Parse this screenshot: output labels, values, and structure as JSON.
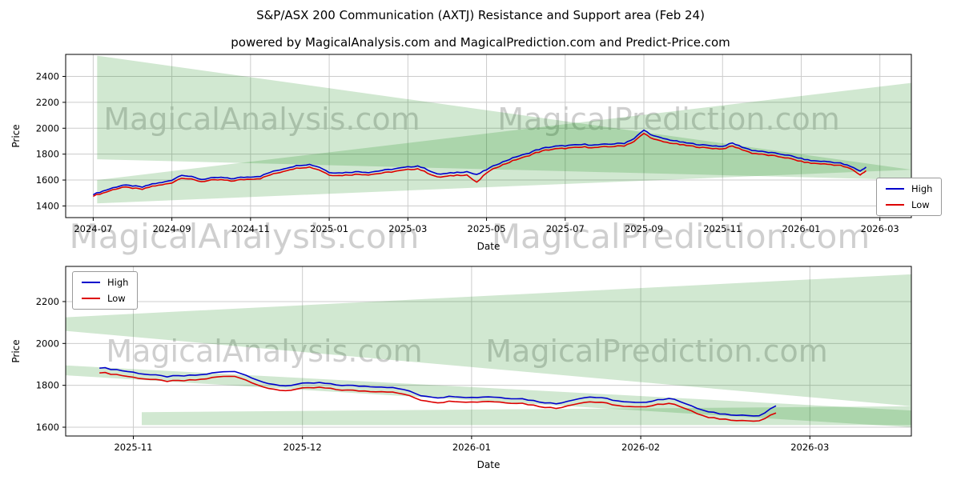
{
  "page": {
    "title": "S&P/ASX 200 Communication (AXTJ) Resistance and Support area (Feb 24)",
    "subtitle": "powered by MagicalAnalysis.com and MagicalPrediction.com and Predict-Price.com"
  },
  "watermarks": {
    "analysis": "MagicalAnalysis.com",
    "prediction": "MagicalPrediction.com"
  },
  "legend": {
    "high": "High",
    "low": "Low"
  },
  "colors": {
    "high": "#0000cc",
    "low": "#dd0000",
    "band": "#008000",
    "grid": "#cccccc",
    "spine": "#000000",
    "watermark": "rgba(128,128,128,0.38)"
  },
  "chart_data": [
    {
      "type": "line",
      "xlabel": "Date",
      "ylabel": "Price",
      "xlim": [
        -0.7,
        20.8
      ],
      "ylim": [
        1310,
        2570
      ],
      "jitter_amp": 4,
      "x_ticks": [
        {
          "v": 0,
          "label": "2024-07"
        },
        {
          "v": 2,
          "label": "2024-09"
        },
        {
          "v": 4,
          "label": "2024-11"
        },
        {
          "v": 6,
          "label": "2025-01"
        },
        {
          "v": 8,
          "label": "2025-03"
        },
        {
          "v": 10,
          "label": "2025-05"
        },
        {
          "v": 12,
          "label": "2025-07"
        },
        {
          "v": 14,
          "label": "2025-09"
        },
        {
          "v": 16,
          "label": "2025-11"
        },
        {
          "v": 18,
          "label": "2026-01"
        },
        {
          "v": 20,
          "label": "2026-03"
        }
      ],
      "y_ticks": [
        1400,
        1600,
        1800,
        2000,
        2200,
        2400
      ],
      "x": [
        0,
        0.25,
        0.5,
        0.75,
        1,
        1.25,
        1.5,
        1.75,
        2,
        2.25,
        2.5,
        2.75,
        3,
        3.25,
        3.5,
        3.75,
        4,
        4.25,
        4.5,
        4.75,
        5,
        5.25,
        5.5,
        5.75,
        6,
        6.25,
        6.5,
        6.75,
        7,
        7.25,
        7.5,
        7.75,
        8,
        8.25,
        8.5,
        8.75,
        9,
        9.25,
        9.5,
        9.75,
        10,
        10.25,
        10.5,
        10.75,
        11,
        11.25,
        11.5,
        11.75,
        12,
        12.25,
        12.5,
        12.75,
        13,
        13.25,
        13.5,
        13.75,
        14,
        14.25,
        14.5,
        14.75,
        15,
        15.25,
        15.5,
        15.75,
        16,
        16.25,
        16.5,
        16.75,
        17,
        17.25,
        17.5,
        17.75,
        18,
        18.25,
        18.5,
        18.75,
        19,
        19.25,
        19.5,
        19.65
      ],
      "series": [
        {
          "name": "High",
          "color": "high",
          "y": [
            1490,
            1515,
            1540,
            1560,
            1555,
            1545,
            1570,
            1580,
            1600,
            1640,
            1625,
            1605,
            1615,
            1620,
            1610,
            1620,
            1625,
            1630,
            1660,
            1680,
            1700,
            1715,
            1720,
            1700,
            1660,
            1655,
            1660,
            1665,
            1660,
            1670,
            1680,
            1690,
            1700,
            1710,
            1680,
            1645,
            1650,
            1660,
            1665,
            1640,
            1680,
            1720,
            1750,
            1780,
            1800,
            1830,
            1850,
            1860,
            1865,
            1870,
            1875,
            1870,
            1875,
            1880,
            1885,
            1920,
            1985,
            1940,
            1920,
            1905,
            1890,
            1880,
            1870,
            1865,
            1860,
            1885,
            1855,
            1830,
            1820,
            1810,
            1800,
            1785,
            1765,
            1750,
            1745,
            1740,
            1730,
            1705,
            1670,
            1700
          ]
        },
        {
          "name": "Low",
          "color": "low",
          "y": [
            1478,
            1500,
            1525,
            1545,
            1538,
            1528,
            1552,
            1562,
            1580,
            1618,
            1605,
            1588,
            1598,
            1602,
            1592,
            1602,
            1608,
            1612,
            1640,
            1660,
            1682,
            1695,
            1700,
            1678,
            1640,
            1635,
            1640,
            1645,
            1642,
            1650,
            1660,
            1670,
            1680,
            1688,
            1655,
            1622,
            1628,
            1638,
            1640,
            1580,
            1655,
            1698,
            1728,
            1758,
            1780,
            1810,
            1830,
            1840,
            1845,
            1850,
            1855,
            1850,
            1856,
            1860,
            1865,
            1898,
            1960,
            1915,
            1895,
            1882,
            1870,
            1860,
            1850,
            1845,
            1840,
            1862,
            1835,
            1808,
            1798,
            1788,
            1778,
            1763,
            1743,
            1730,
            1726,
            1720,
            1712,
            1688,
            1640,
            1672
          ]
        }
      ],
      "bands": [
        {
          "x0": 0.1,
          "x1": 20.8,
          "top0": 2560,
          "top1": 1680,
          "bot0": 1760,
          "bot1": 1600
        },
        {
          "x0": 0.1,
          "x1": 20.8,
          "top0": 1600,
          "top1": 2350,
          "bot0": 1420,
          "bot1": 1680
        }
      ]
    },
    {
      "type": "line",
      "xlabel": "Date",
      "ylabel": "Price",
      "xlim": [
        -0.4,
        4.6
      ],
      "ylim": [
        1558,
        2368
      ],
      "jitter_amp": 3,
      "x_ticks": [
        {
          "v": 0,
          "label": "2025-11"
        },
        {
          "v": 1,
          "label": "2025-12"
        },
        {
          "v": 2,
          "label": "2026-01"
        },
        {
          "v": 3,
          "label": "2026-02"
        },
        {
          "v": 4,
          "label": "2026-03"
        }
      ],
      "y_ticks": [
        1600,
        1800,
        2000,
        2200
      ],
      "x": [
        -0.2,
        -0.1,
        0,
        0.1,
        0.2,
        0.3,
        0.4,
        0.5,
        0.6,
        0.7,
        0.8,
        0.9,
        1,
        1.1,
        1.2,
        1.3,
        1.4,
        1.5,
        1.6,
        1.7,
        1.8,
        1.9,
        2,
        2.1,
        2.2,
        2.3,
        2.4,
        2.5,
        2.6,
        2.7,
        2.8,
        2.9,
        3,
        3.1,
        3.2,
        3.3,
        3.4,
        3.5,
        3.6,
        3.7,
        3.8
      ],
      "series": [
        {
          "name": "High",
          "color": "high",
          "y": [
            1885,
            1875,
            1862,
            1850,
            1842,
            1845,
            1850,
            1862,
            1868,
            1838,
            1805,
            1798,
            1808,
            1812,
            1802,
            1798,
            1795,
            1792,
            1780,
            1752,
            1742,
            1748,
            1742,
            1746,
            1740,
            1736,
            1722,
            1712,
            1732,
            1745,
            1736,
            1720,
            1716,
            1732,
            1736,
            1700,
            1672,
            1662,
            1658,
            1652,
            1702
          ]
        },
        {
          "name": "Low",
          "color": "low",
          "y": [
            1862,
            1852,
            1838,
            1828,
            1820,
            1822,
            1828,
            1840,
            1845,
            1815,
            1782,
            1775,
            1785,
            1790,
            1780,
            1775,
            1772,
            1770,
            1758,
            1730,
            1718,
            1725,
            1720,
            1724,
            1718,
            1714,
            1700,
            1690,
            1710,
            1722,
            1714,
            1698,
            1695,
            1710,
            1712,
            1676,
            1645,
            1638,
            1632,
            1628,
            1668
          ]
        }
      ],
      "bands": [
        {
          "x0": -0.4,
          "x1": 4.6,
          "top0": 2125,
          "top1": 2330,
          "bot0": 2060,
          "bot1": 1700
        },
        {
          "x0": -0.4,
          "x1": 4.6,
          "top0": 1895,
          "top1": 1680,
          "bot0": 1848,
          "bot1": 1600
        },
        {
          "x0": 0.05,
          "x1": 4.6,
          "top0": 1672,
          "top1": 1700,
          "bot0": 1610,
          "bot1": 1610
        }
      ]
    }
  ]
}
